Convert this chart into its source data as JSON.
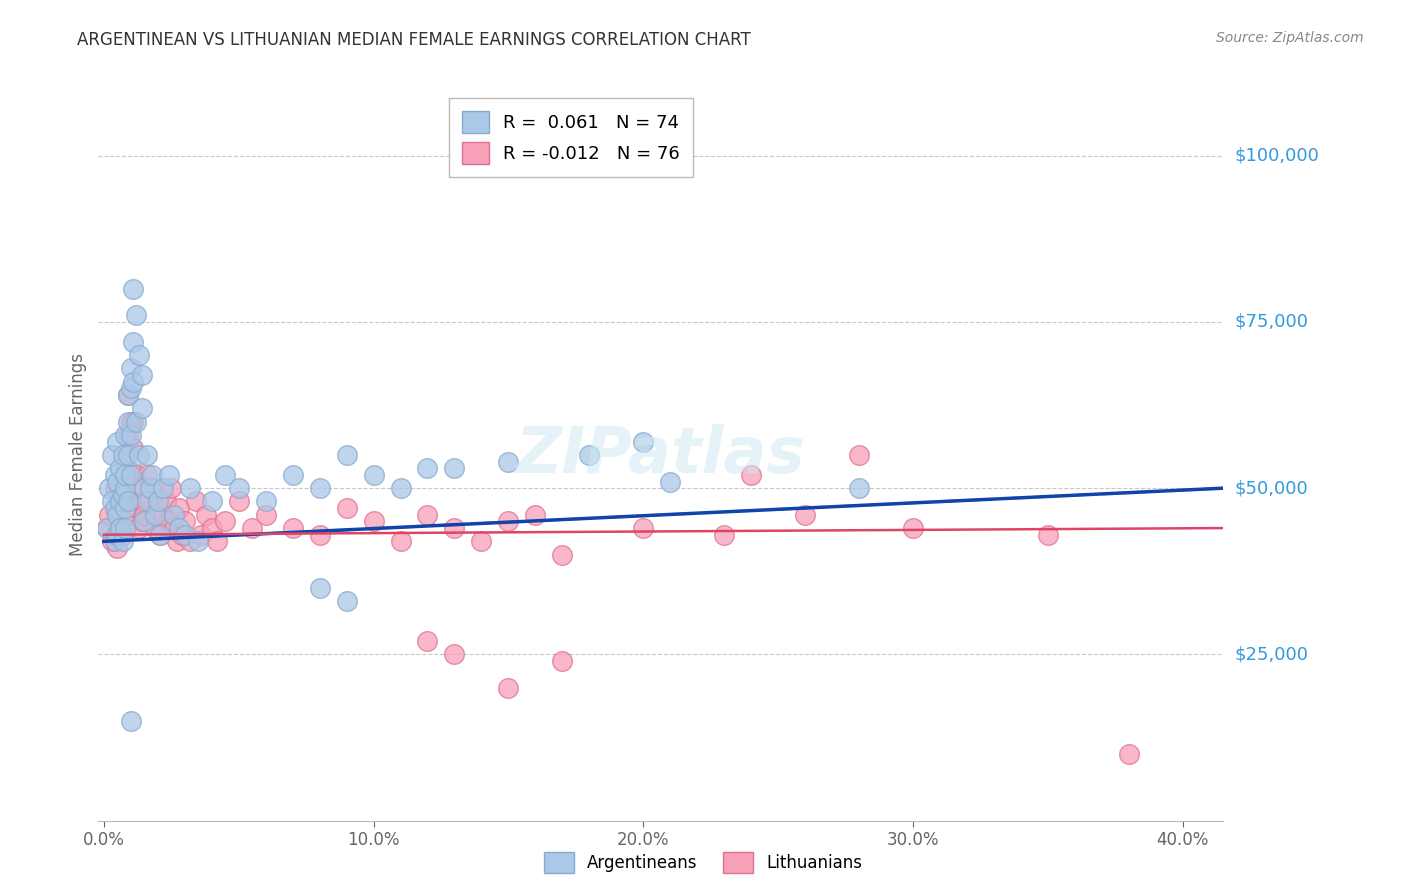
{
  "title": "ARGENTINEAN VS LITHUANIAN MEDIAN FEMALE EARNINGS CORRELATION CHART",
  "source": "Source: ZipAtlas.com",
  "ylabel": "Median Female Earnings",
  "xlabel_ticks": [
    "0.0%",
    "10.0%",
    "20.0%",
    "30.0%",
    "40.0%"
  ],
  "xlabel_values": [
    0.0,
    0.1,
    0.2,
    0.3,
    0.4
  ],
  "ytick_labels": [
    "$25,000",
    "$50,000",
    "$75,000",
    "$100,000"
  ],
  "ytick_values": [
    25000,
    50000,
    75000,
    100000
  ],
  "ymin": 0,
  "ymax": 110000,
  "xmin": -0.002,
  "xmax": 0.415,
  "legend_labels_bottom": [
    "Argentineans",
    "Lithuanians"
  ],
  "watermark": "ZIPatlas",
  "background_color": "#ffffff",
  "grid_color": "#c8c8c8",
  "ytick_color": "#3399dd",
  "title_color": "#333333",
  "source_color": "#888888",
  "blue_dot_color": "#aac8e8",
  "blue_dot_edge": "#88aacc",
  "pink_dot_color": "#f8a0b8",
  "pink_dot_edge": "#e07090",
  "blue_line_color": "#1144aa",
  "blue_line_color_dash": "#4488cc",
  "pink_line_color": "#dd4466",
  "dot_size": 200,
  "dot_alpha": 0.75,
  "legend1_label": "R =  0.061   N = 74",
  "legend2_label": "R = -0.012   N = 76",
  "argentinean_x": [
    0.001,
    0.002,
    0.003,
    0.003,
    0.004,
    0.004,
    0.004,
    0.005,
    0.005,
    0.005,
    0.005,
    0.006,
    0.006,
    0.006,
    0.007,
    0.007,
    0.007,
    0.008,
    0.008,
    0.008,
    0.008,
    0.008,
    0.009,
    0.009,
    0.009,
    0.009,
    0.01,
    0.01,
    0.01,
    0.01,
    0.011,
    0.011,
    0.011,
    0.012,
    0.012,
    0.013,
    0.013,
    0.014,
    0.014,
    0.015,
    0.015,
    0.016,
    0.016,
    0.017,
    0.018,
    0.019,
    0.02,
    0.021,
    0.022,
    0.024,
    0.026,
    0.028,
    0.03,
    0.032,
    0.035,
    0.04,
    0.045,
    0.05,
    0.06,
    0.07,
    0.08,
    0.09,
    0.1,
    0.11,
    0.12,
    0.15,
    0.18,
    0.2,
    0.21,
    0.13,
    0.28,
    0.08,
    0.09,
    0.01
  ],
  "argentinean_y": [
    44000,
    50000,
    48000,
    55000,
    47000,
    42000,
    52000,
    46000,
    43000,
    51000,
    57000,
    48000,
    44000,
    53000,
    55000,
    49000,
    42000,
    58000,
    50000,
    44000,
    47000,
    52000,
    64000,
    60000,
    55000,
    48000,
    68000,
    65000,
    52000,
    58000,
    72000,
    66000,
    80000,
    76000,
    60000,
    70000,
    55000,
    67000,
    62000,
    50000,
    45000,
    48000,
    55000,
    50000,
    52000,
    46000,
    48000,
    43000,
    50000,
    52000,
    46000,
    44000,
    43000,
    50000,
    42000,
    48000,
    52000,
    50000,
    48000,
    52000,
    50000,
    55000,
    52000,
    50000,
    53000,
    54000,
    55000,
    57000,
    51000,
    53000,
    50000,
    35000,
    33000,
    15000
  ],
  "lithuanian_x": [
    0.001,
    0.002,
    0.003,
    0.004,
    0.004,
    0.005,
    0.005,
    0.006,
    0.006,
    0.007,
    0.007,
    0.008,
    0.008,
    0.009,
    0.009,
    0.01,
    0.01,
    0.01,
    0.011,
    0.011,
    0.012,
    0.012,
    0.013,
    0.013,
    0.014,
    0.014,
    0.015,
    0.016,
    0.017,
    0.018,
    0.019,
    0.02,
    0.021,
    0.022,
    0.023,
    0.024,
    0.025,
    0.026,
    0.027,
    0.028,
    0.029,
    0.03,
    0.032,
    0.034,
    0.036,
    0.038,
    0.04,
    0.042,
    0.045,
    0.05,
    0.055,
    0.06,
    0.07,
    0.08,
    0.09,
    0.1,
    0.11,
    0.12,
    0.13,
    0.14,
    0.15,
    0.16,
    0.17,
    0.2,
    0.23,
    0.26,
    0.3,
    0.35,
    0.28,
    0.24,
    0.15,
    0.17,
    0.13,
    0.12,
    0.38,
    0.01
  ],
  "lithuanian_y": [
    44000,
    46000,
    42000,
    50000,
    43000,
    47000,
    41000,
    50000,
    44000,
    48000,
    43000,
    50000,
    55000,
    58000,
    64000,
    52000,
    48000,
    46000,
    60000,
    56000,
    52000,
    47000,
    50000,
    44000,
    48000,
    45000,
    46000,
    52000,
    48000,
    50000,
    44000,
    47000,
    43000,
    46000,
    48000,
    45000,
    50000,
    44000,
    42000,
    47000,
    43000,
    45000,
    42000,
    48000,
    43000,
    46000,
    44000,
    42000,
    45000,
    48000,
    44000,
    46000,
    44000,
    43000,
    47000,
    45000,
    42000,
    46000,
    44000,
    42000,
    45000,
    46000,
    40000,
    44000,
    43000,
    46000,
    44000,
    43000,
    55000,
    52000,
    20000,
    24000,
    25000,
    27000,
    10000,
    60000
  ]
}
